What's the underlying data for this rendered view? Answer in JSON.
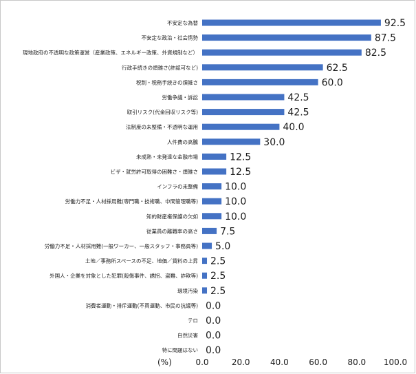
{
  "chart_data": {
    "type": "bar",
    "orientation": "horizontal",
    "title": "",
    "xlabel": "",
    "ylabel": "",
    "unit_label": "(%)",
    "xlim": [
      0,
      100
    ],
    "x_ticks": [
      "0.0",
      "20.0",
      "40.0",
      "60.0",
      "80.0",
      "100.0"
    ],
    "grid": false,
    "legend": "none",
    "bar_color": "#4472c4",
    "categories": [
      "不安定な為替",
      "不安定な政治・社会情勢",
      "現地政府の不透明な政策運営（産業政策、エネルギー政策、外資規制など）",
      "行政手続きの煩雑さ(許認可など)",
      "税制・税務手続きの煩雑さ",
      "労働争議・訴訟",
      "取引リスク(代金回収リスク等)",
      "法制度の未整備・不透明な運用",
      "人件費の高騰",
      "未成熟・未発達な金融市場",
      "ビザ・就労許可取得の困難さ・煩雑さ",
      "インフラの未整備",
      "労働力不足・人材採用難(専門職・技術職、中間管理職等)",
      "知的財産権保護の欠如",
      "従業員の離職率の高さ",
      "労働力不足・人材採用難(一般ワーカー、一般スタッフ・事務員等)",
      "土地／事務所スペースの不足、地価／賃料の上昇",
      "外国人・企業を対象とした犯罪(殺傷事件、誘拐、盗難、詐欺等)",
      "環境汚染",
      "消費者運動・排斥運動(不買運動、市民の抗議等)",
      "テロ",
      "自然災害",
      "特に問題はない"
    ],
    "values": [
      92.5,
      87.5,
      82.5,
      62.5,
      60.0,
      42.5,
      42.5,
      40.0,
      30.0,
      12.5,
      12.5,
      10.0,
      10.0,
      10.0,
      7.5,
      5.0,
      2.5,
      2.5,
      2.5,
      0.0,
      0.0,
      0.0,
      0.0
    ],
    "value_labels": [
      "92.5",
      "87.5",
      "82.5",
      "62.5",
      "60.0",
      "42.5",
      "42.5",
      "40.0",
      "30.0",
      "12.5",
      "12.5",
      "10.0",
      "10.0",
      "10.0",
      "7.5",
      "5.0",
      "2.5",
      "2.5",
      "2.5",
      "0.0",
      "0.0",
      "0.0",
      "0.0"
    ]
  }
}
